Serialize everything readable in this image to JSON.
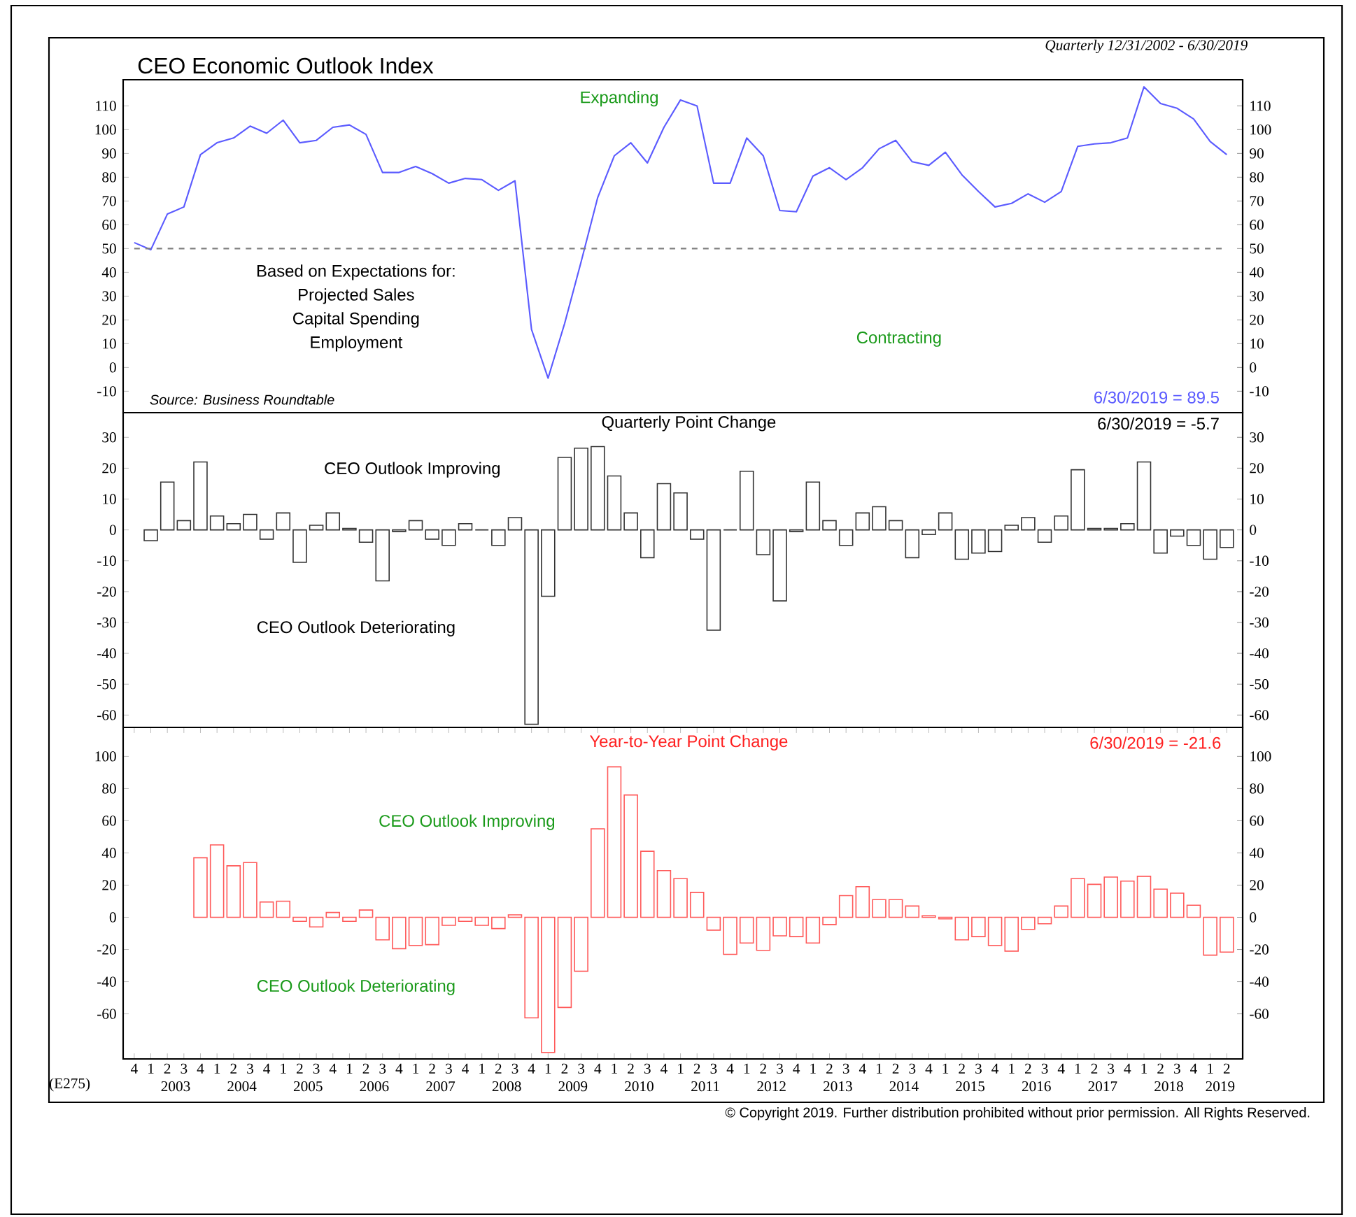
{
  "chart_data": [
    {
      "type": "line",
      "title": "CEO Economic Outlook Index",
      "subtitle": "Quarterly 12/31/2002 - 6/30/2019",
      "categories": [
        "4",
        "1",
        "2",
        "3",
        "4",
        "1",
        "2",
        "3",
        "4",
        "1",
        "2",
        "3",
        "4",
        "1",
        "2",
        "3",
        "4",
        "1",
        "2",
        "3",
        "4",
        "1",
        "2",
        "3",
        "4",
        "1",
        "2",
        "3",
        "4",
        "1",
        "2",
        "3",
        "4",
        "1",
        "2",
        "3",
        "4",
        "1",
        "2",
        "3",
        "4",
        "1",
        "2",
        "3",
        "4",
        "1",
        "2",
        "3",
        "4",
        "1",
        "2",
        "3",
        "4",
        "1",
        "2",
        "3",
        "4",
        "1",
        "2",
        "3",
        "4",
        "1",
        "2",
        "3",
        "4",
        "1",
        "2"
      ],
      "values": [
        52.5,
        49.5,
        64.5,
        67.5,
        89.5,
        94.5,
        96.5,
        101.5,
        98.5,
        104,
        94.5,
        95.5,
        101,
        102,
        98,
        82,
        82,
        84.5,
        81.5,
        77.5,
        79.5,
        79,
        74.5,
        78.5,
        16,
        -4.5,
        18.5,
        44.5,
        71.5,
        89,
        94.5,
        86,
        101,
        112.5,
        110,
        77.5,
        77.5,
        96.5,
        89,
        66,
        65.5,
        80.5,
        84,
        79,
        84,
        92,
        95.5,
        86.5,
        85,
        90.5,
        81,
        74,
        67.5,
        69,
        73,
        69.5,
        74,
        93,
        94,
        94.5,
        96.5,
        118,
        111,
        109,
        104.5,
        95,
        89.5
      ],
      "color": "#5b5bff",
      "ylim": [
        -19,
        121
      ],
      "yticks": [
        -10,
        0,
        10,
        20,
        30,
        40,
        50,
        60,
        70,
        80,
        90,
        100,
        110
      ],
      "y2lim": [
        -19,
        121
      ],
      "y2ticks": [
        -10,
        0,
        10,
        20,
        30,
        40,
        50,
        60,
        70,
        80,
        90,
        100,
        110
      ],
      "tick_labels": "y",
      "ref_lines": [
        {
          "axis": "y",
          "value": 50,
          "color": "#808080",
          "line_style": "dashed"
        }
      ],
      "annotations": [
        "Expanding",
        "Based on Expectations for:",
        "Projected Sales",
        "Capital Spending",
        "Employment",
        "Contracting",
        "Source: Business Roundtable",
        "6/30/2019 = 89.5"
      ]
    },
    {
      "type": "bar",
      "title": "Quarterly Point Change",
      "categories": [
        "4",
        "1",
        "2",
        "3",
        "4",
        "1",
        "2",
        "3",
        "4",
        "1",
        "2",
        "3",
        "4",
        "1",
        "2",
        "3",
        "4",
        "1",
        "2",
        "3",
        "4",
        "1",
        "2",
        "3",
        "4",
        "1",
        "2",
        "3",
        "4",
        "1",
        "2",
        "3",
        "4",
        "1",
        "2",
        "3",
        "4",
        "1",
        "2",
        "3",
        "4",
        "1",
        "2",
        "3",
        "4",
        "1",
        "2",
        "3",
        "4",
        "1",
        "2",
        "3",
        "4",
        "1",
        "2",
        "3",
        "4",
        "1",
        "2",
        "3",
        "4",
        "1",
        "2",
        "3",
        "4",
        "1",
        "2"
      ],
      "values": [
        null,
        -3.5,
        15.5,
        3,
        22,
        4.5,
        2,
        5,
        -3,
        5.5,
        -10.5,
        1.5,
        5.5,
        0.5,
        -4,
        -16.5,
        -0.5,
        3,
        -3,
        -5,
        2,
        0,
        -5,
        4,
        -63,
        -21.5,
        23.5,
        26.5,
        27,
        17.5,
        5.5,
        -9,
        15,
        12,
        -3,
        -32.5,
        0,
        19,
        -8,
        -23,
        -0.5,
        15.5,
        3,
        -5,
        5.5,
        7.5,
        3,
        -9,
        -1.5,
        5.5,
        -9.5,
        -7.5,
        -7,
        1.5,
        4,
        -4,
        4.5,
        19.5,
        0.5,
        0.5,
        2,
        22,
        -7.5,
        -2,
        -5,
        -9.5,
        -5.7
      ],
      "color": "#333333",
      "ylim": [
        -64,
        38
      ],
      "yticks": [
        -60,
        -50,
        -40,
        -30,
        -20,
        -10,
        0,
        10,
        20,
        30
      ],
      "y2lim": [
        -64,
        38
      ],
      "y2ticks": [
        -60,
        -50,
        -40,
        -30,
        -20,
        -10,
        0,
        10,
        20,
        30
      ],
      "tick_labels": "y",
      "annotations": [
        "6/30/2019 = -5.7",
        "CEO Outlook Improving",
        "CEO Outlook Deteriorating"
      ]
    },
    {
      "type": "bar",
      "title": "Year-to-Year Point Change",
      "categories": [
        "4",
        "1",
        "2",
        "3",
        "4",
        "1",
        "2",
        "3",
        "4",
        "1",
        "2",
        "3",
        "4",
        "1",
        "2",
        "3",
        "4",
        "1",
        "2",
        "3",
        "4",
        "1",
        "2",
        "3",
        "4",
        "1",
        "2",
        "3",
        "4",
        "1",
        "2",
        "3",
        "4",
        "1",
        "2",
        "3",
        "4",
        "1",
        "2",
        "3",
        "4",
        "1",
        "2",
        "3",
        "4",
        "1",
        "2",
        "3",
        "4",
        "1",
        "2",
        "3",
        "4",
        "1",
        "2",
        "3",
        "4",
        "1",
        "2",
        "3",
        "4",
        "1",
        "2",
        "3",
        "4",
        "1",
        "2"
      ],
      "values": [
        null,
        null,
        null,
        null,
        37,
        45,
        32,
        34,
        9.5,
        10,
        -2.5,
        -6,
        3,
        -2.5,
        4.5,
        -14,
        -19.5,
        -17.5,
        -17,
        -5,
        -2.5,
        -5,
        -7,
        1.5,
        -62.5,
        -84,
        -56,
        -33.5,
        55,
        93.5,
        76,
        41,
        29,
        24,
        15.5,
        -8,
        -23,
        -16,
        -20.5,
        -11.5,
        -12,
        -16,
        -4.5,
        13.5,
        19,
        11,
        11,
        7,
        1,
        -1,
        -14,
        -12,
        -17.5,
        -21,
        -7.5,
        -4,
        7,
        24,
        20.5,
        25,
        22.5,
        25.5,
        17.5,
        15,
        7.5,
        -23.5,
        -21.6
      ],
      "color": "#ff5a5a",
      "ylim": [
        -88,
        118
      ],
      "yticks": [
        -60,
        -40,
        -20,
        0,
        20,
        40,
        60,
        80,
        100
      ],
      "y2lim": [
        -88,
        118
      ],
      "y2ticks": [
        -60,
        -40,
        -20,
        0,
        20,
        40,
        60,
        80,
        100
      ],
      "annotations": [
        "6/30/2019 = -21.6",
        "CEO Outlook Improving",
        "CEO Outlook Deteriorating",
        "2003",
        "2004",
        "2005",
        "2006",
        "2007",
        "2008",
        "2009",
        "2010",
        "2011",
        "2012",
        "2013",
        "2014",
        "2015",
        "2016",
        "2017",
        "2018",
        "2019",
        "(E275)",
        "© Copyright 2019. Further distribution prohibited without prior permission. All Rights Reserved."
      ]
    }
  ]
}
